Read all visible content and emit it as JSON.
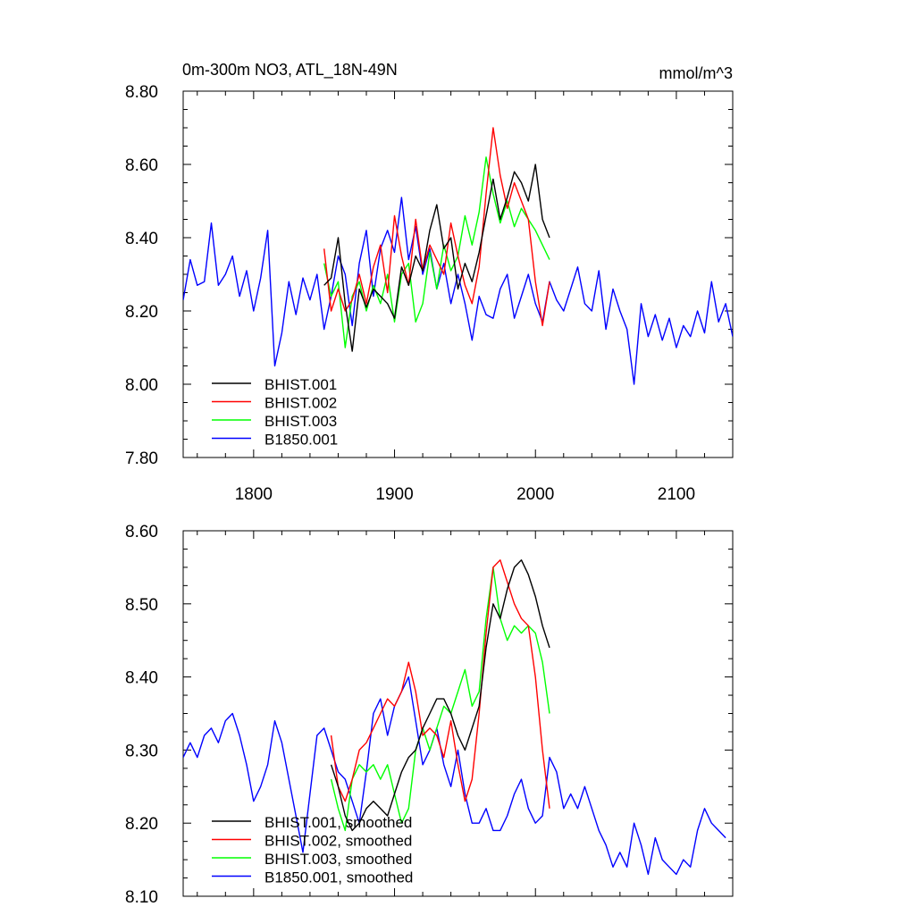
{
  "chart_data": [
    {
      "type": "line",
      "title": "0m-300m NO3, ATL_18N-49N",
      "units": "mmol/m^3",
      "xlim": [
        1750,
        2140
      ],
      "ylim": [
        7.8,
        8.8
      ],
      "x_ticks": [
        1800,
        1900,
        2000,
        2100
      ],
      "y_ticks": [
        7.8,
        8.0,
        8.2,
        8.4,
        8.6,
        8.8
      ],
      "y_tick_labels": [
        "7.80",
        "8.00",
        "8.20",
        "8.40",
        "8.60",
        "8.80"
      ],
      "legend": "bottom-left",
      "series": [
        {
          "name": "BHIST.001",
          "color": "#000000",
          "x": [
            1850,
            1855,
            1860,
            1865,
            1870,
            1875,
            1880,
            1885,
            1890,
            1895,
            1900,
            1905,
            1910,
            1915,
            1920,
            1925,
            1930,
            1935,
            1940,
            1945,
            1950,
            1955,
            1960,
            1965,
            1970,
            1975,
            1980,
            1985,
            1990,
            1995,
            2000,
            2005,
            2010
          ],
          "y": [
            8.27,
            8.29,
            8.4,
            8.22,
            8.09,
            8.26,
            8.21,
            8.26,
            8.24,
            8.22,
            8.18,
            8.32,
            8.27,
            8.35,
            8.31,
            8.42,
            8.49,
            8.37,
            8.4,
            8.26,
            8.33,
            8.28,
            8.36,
            8.46,
            8.56,
            8.45,
            8.51,
            8.58,
            8.55,
            8.5,
            8.6,
            8.45,
            8.4
          ]
        },
        {
          "name": "BHIST.002",
          "color": "#ff0000",
          "x": [
            1850,
            1855,
            1860,
            1865,
            1870,
            1875,
            1880,
            1885,
            1890,
            1895,
            1900,
            1905,
            1910,
            1915,
            1920,
            1925,
            1930,
            1935,
            1940,
            1945,
            1950,
            1955,
            1960,
            1965,
            1970,
            1975,
            1980,
            1985,
            1990,
            1995,
            2000,
            2005,
            2010
          ],
          "y": [
            8.37,
            8.2,
            8.26,
            8.2,
            8.23,
            8.3,
            8.22,
            8.32,
            8.38,
            8.25,
            8.46,
            8.35,
            8.27,
            8.45,
            8.31,
            8.38,
            8.34,
            8.3,
            8.44,
            8.35,
            8.27,
            8.22,
            8.32,
            8.52,
            8.7,
            8.57,
            8.48,
            8.55,
            8.5,
            8.45,
            8.28,
            8.16,
            8.28
          ]
        },
        {
          "name": "BHIST.003",
          "color": "#00ff00",
          "x": [
            1850,
            1855,
            1860,
            1865,
            1870,
            1875,
            1880,
            1885,
            1890,
            1895,
            1900,
            1905,
            1910,
            1915,
            1920,
            1925,
            1930,
            1935,
            1940,
            1945,
            1950,
            1955,
            1960,
            1965,
            1970,
            1975,
            1980,
            1985,
            1990,
            1995,
            2000,
            2005,
            2010
          ],
          "y": [
            8.33,
            8.24,
            8.28,
            8.1,
            8.24,
            8.28,
            8.2,
            8.27,
            8.22,
            8.3,
            8.17,
            8.3,
            8.33,
            8.17,
            8.22,
            8.36,
            8.26,
            8.38,
            8.31,
            8.35,
            8.46,
            8.38,
            8.47,
            8.62,
            8.52,
            8.44,
            8.5,
            8.43,
            8.48,
            8.45,
            8.42,
            8.38,
            8.34
          ]
        },
        {
          "name": "B1850.001",
          "color": "#0000ff",
          "x": [
            1750,
            1755,
            1760,
            1765,
            1770,
            1775,
            1780,
            1785,
            1790,
            1795,
            1800,
            1805,
            1810,
            1815,
            1820,
            1825,
            1830,
            1835,
            1840,
            1845,
            1850,
            1855,
            1860,
            1865,
            1870,
            1875,
            1880,
            1885,
            1890,
            1895,
            1900,
            1905,
            1910,
            1915,
            1920,
            1925,
            1930,
            1935,
            1940,
            1945,
            1950,
            1955,
            1960,
            1965,
            1970,
            1975,
            1980,
            1985,
            1990,
            1995,
            2000,
            2005,
            2010,
            2015,
            2020,
            2025,
            2030,
            2035,
            2040,
            2045,
            2050,
            2055,
            2060,
            2065,
            2070,
            2075,
            2080,
            2085,
            2090,
            2095,
            2100,
            2105,
            2110,
            2115,
            2120,
            2125,
            2130,
            2135,
            2140
          ],
          "y": [
            8.23,
            8.34,
            8.27,
            8.28,
            8.44,
            8.27,
            8.3,
            8.35,
            8.24,
            8.31,
            8.2,
            8.29,
            8.42,
            8.05,
            8.14,
            8.28,
            8.19,
            8.29,
            8.23,
            8.3,
            8.15,
            8.24,
            8.35,
            8.3,
            8.16,
            8.33,
            8.42,
            8.24,
            8.37,
            8.42,
            8.36,
            8.51,
            8.34,
            8.43,
            8.3,
            8.37,
            8.26,
            8.33,
            8.22,
            8.3,
            8.22,
            8.12,
            8.24,
            8.19,
            8.18,
            8.26,
            8.3,
            8.18,
            8.24,
            8.3,
            8.22,
            8.17,
            8.28,
            8.23,
            8.2,
            8.26,
            8.32,
            8.22,
            8.2,
            8.31,
            8.15,
            8.26,
            8.2,
            8.15,
            8.0,
            8.22,
            8.13,
            8.19,
            8.12,
            8.18,
            8.1,
            8.16,
            8.13,
            8.2,
            8.14,
            8.28,
            8.17,
            8.22,
            8.13
          ]
        }
      ]
    },
    {
      "type": "line",
      "title": "",
      "xlim": [
        1750,
        2140
      ],
      "ylim": [
        8.1,
        8.6
      ],
      "x_ticks": [
        1800,
        1900,
        2000,
        2100
      ],
      "y_ticks": [
        8.1,
        8.2,
        8.3,
        8.4,
        8.5,
        8.6
      ],
      "y_tick_labels": [
        "8.10",
        "8.20",
        "8.30",
        "8.40",
        "8.50",
        "8.60"
      ],
      "legend": "bottom-left",
      "series": [
        {
          "name": "BHIST.001, smoothed",
          "color": "#000000",
          "x": [
            1855,
            1860,
            1865,
            1870,
            1875,
            1880,
            1885,
            1890,
            1895,
            1900,
            1905,
            1910,
            1915,
            1920,
            1925,
            1930,
            1935,
            1940,
            1945,
            1950,
            1955,
            1960,
            1965,
            1970,
            1975,
            1980,
            1985,
            1990,
            1995,
            2000,
            2005,
            2010
          ],
          "y": [
            8.28,
            8.25,
            8.21,
            8.19,
            8.2,
            8.22,
            8.23,
            8.22,
            8.21,
            8.24,
            8.27,
            8.29,
            8.3,
            8.33,
            8.35,
            8.37,
            8.37,
            8.35,
            8.32,
            8.3,
            8.33,
            8.36,
            8.44,
            8.5,
            8.48,
            8.52,
            8.55,
            8.56,
            8.54,
            8.51,
            8.47,
            8.44
          ]
        },
        {
          "name": "BHIST.002, smoothed",
          "color": "#ff0000",
          "x": [
            1855,
            1860,
            1865,
            1870,
            1875,
            1880,
            1885,
            1890,
            1895,
            1900,
            1905,
            1910,
            1915,
            1920,
            1925,
            1930,
            1935,
            1940,
            1945,
            1950,
            1955,
            1960,
            1965,
            1970,
            1975,
            1980,
            1985,
            1990,
            1995,
            2000,
            2005,
            2010
          ],
          "y": [
            8.32,
            8.25,
            8.23,
            8.26,
            8.3,
            8.31,
            8.33,
            8.35,
            8.37,
            8.36,
            8.38,
            8.42,
            8.38,
            8.32,
            8.33,
            8.32,
            8.29,
            8.34,
            8.28,
            8.23,
            8.26,
            8.35,
            8.46,
            8.55,
            8.56,
            8.53,
            8.5,
            8.48,
            8.47,
            8.4,
            8.3,
            8.22
          ]
        },
        {
          "name": "BHIST.003, smoothed",
          "color": "#00ff00",
          "x": [
            1855,
            1860,
            1865,
            1870,
            1875,
            1880,
            1885,
            1890,
            1895,
            1900,
            1905,
            1910,
            1915,
            1920,
            1925,
            1930,
            1935,
            1940,
            1945,
            1950,
            1955,
            1960,
            1965,
            1970,
            1975,
            1980,
            1985,
            1990,
            1995,
            2000,
            2005,
            2010
          ],
          "y": [
            8.26,
            8.22,
            8.19,
            8.26,
            8.28,
            8.27,
            8.28,
            8.26,
            8.28,
            8.24,
            8.2,
            8.22,
            8.3,
            8.33,
            8.3,
            8.33,
            8.36,
            8.35,
            8.38,
            8.41,
            8.36,
            8.38,
            8.48,
            8.55,
            8.48,
            8.45,
            8.47,
            8.46,
            8.47,
            8.46,
            8.42,
            8.35
          ]
        },
        {
          "name": "B1850.001, smoothed",
          "color": "#0000ff",
          "x": [
            1750,
            1755,
            1760,
            1765,
            1770,
            1775,
            1780,
            1785,
            1790,
            1795,
            1800,
            1805,
            1810,
            1815,
            1820,
            1825,
            1830,
            1835,
            1840,
            1845,
            1850,
            1855,
            1860,
            1865,
            1870,
            1875,
            1880,
            1885,
            1890,
            1895,
            1900,
            1905,
            1910,
            1915,
            1920,
            1925,
            1930,
            1935,
            1940,
            1945,
            1950,
            1955,
            1960,
            1965,
            1970,
            1975,
            1980,
            1985,
            1990,
            1995,
            2000,
            2005,
            2010,
            2015,
            2020,
            2025,
            2030,
            2035,
            2040,
            2045,
            2050,
            2055,
            2060,
            2065,
            2070,
            2075,
            2080,
            2085,
            2090,
            2095,
            2100,
            2105,
            2110,
            2115,
            2120,
            2125,
            2130,
            2135
          ],
          "y": [
            8.29,
            8.31,
            8.29,
            8.32,
            8.33,
            8.31,
            8.34,
            8.35,
            8.32,
            8.28,
            8.23,
            8.25,
            8.28,
            8.34,
            8.31,
            8.26,
            8.21,
            8.16,
            8.24,
            8.32,
            8.33,
            8.3,
            8.27,
            8.26,
            8.23,
            8.2,
            8.27,
            8.35,
            8.37,
            8.32,
            8.36,
            8.38,
            8.4,
            8.34,
            8.28,
            8.3,
            8.33,
            8.28,
            8.25,
            8.3,
            8.24,
            8.2,
            8.2,
            8.22,
            8.19,
            8.19,
            8.21,
            8.24,
            8.26,
            8.22,
            8.2,
            8.21,
            8.29,
            8.27,
            8.22,
            8.24,
            8.22,
            8.25,
            8.22,
            8.19,
            8.17,
            8.14,
            8.16,
            8.14,
            8.2,
            8.17,
            8.13,
            8.18,
            8.15,
            8.14,
            8.13,
            8.15,
            8.14,
            8.19,
            8.22,
            8.2,
            8.19,
            8.18
          ]
        }
      ]
    }
  ]
}
